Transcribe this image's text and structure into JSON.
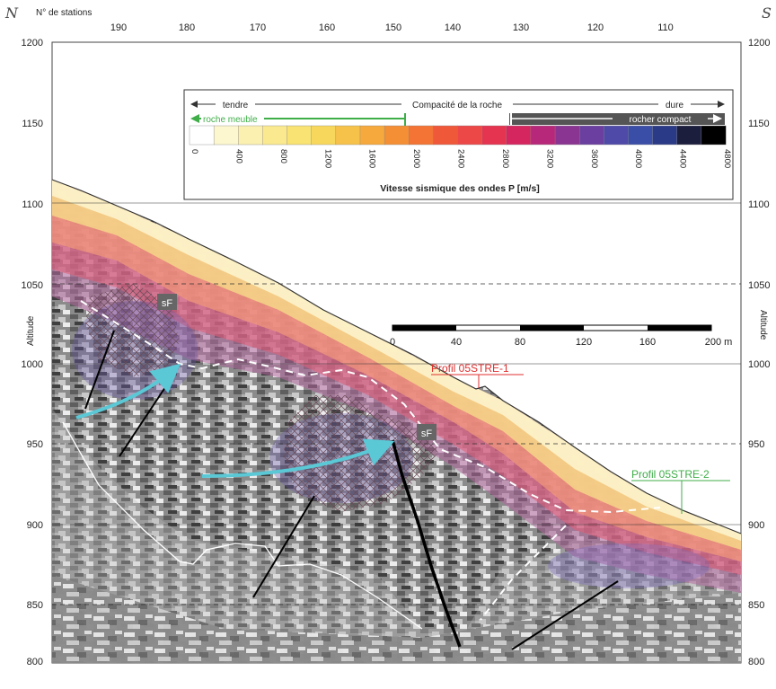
{
  "corners": {
    "left": "N",
    "right": "S"
  },
  "stations_label": "N° de stations",
  "station_ticks": [
    "190",
    "180",
    "170",
    "160",
    "150",
    "140",
    "130",
    "120",
    "110"
  ],
  "altitude_label": "Altitude",
  "altitude_ticks": [
    "1200",
    "1150",
    "1100",
    "1050",
    "1000",
    "950",
    "900",
    "850",
    "800"
  ],
  "legend": {
    "tendre": "tendre",
    "compacite": "Compacité de la roche",
    "dure": "dure",
    "roche_meuble": "roche meuble",
    "rocher_compact": "rocher compact",
    "ticks": [
      "0",
      "400",
      "800",
      "1200",
      "1600",
      "2000",
      "2400",
      "2800",
      "3200",
      "3600",
      "4000",
      "4400",
      "4800"
    ],
    "title": "Vitesse sismique des ondes P [m/s]",
    "colors": [
      "#ffffff",
      "#fdf7cf",
      "#fcf0b0",
      "#fbe98f",
      "#f9e373",
      "#f8d85c",
      "#f7c24a",
      "#f6a93c",
      "#f48f36",
      "#f37434",
      "#f0583a",
      "#ec4848",
      "#e5344f",
      "#d5265f",
      "#b7287a",
      "#8a3591",
      "#6b3fa0",
      "#4f4aa8",
      "#3a4ea8",
      "#2b3a86",
      "#1c1e3d",
      "#000000"
    ],
    "green": "#3fae49"
  },
  "scale_bar": {
    "ticks": [
      "0",
      "40",
      "80",
      "120",
      "160",
      "200 m"
    ]
  },
  "labels": {
    "sf1": "sF",
    "sf2": "sF",
    "profil1": "Profil 05STRE-1",
    "profil2": "Profil 05STRE-2"
  },
  "colors": {
    "profil1": "#e03030",
    "profil2": "#3fae49",
    "arrow": "#5bc8d6"
  }
}
